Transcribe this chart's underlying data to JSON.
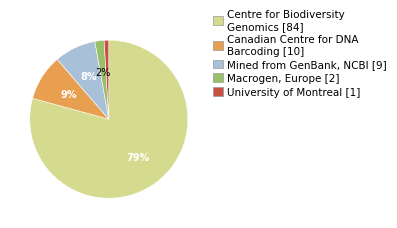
{
  "labels": [
    "Centre for Biodiversity\nGenomics [84]",
    "Canadian Centre for DNA\nBarcoding [10]",
    "Mined from GenBank, NCBI [9]",
    "Macrogen, Europe [2]",
    "University of Montreal [1]"
  ],
  "values": [
    84,
    10,
    9,
    2,
    1
  ],
  "colors": [
    "#d4db8e",
    "#e8a050",
    "#a8c0d8",
    "#98c068",
    "#c85040"
  ],
  "background_color": "#ffffff",
  "fontsize": 7,
  "legend_fontsize": 7.5
}
